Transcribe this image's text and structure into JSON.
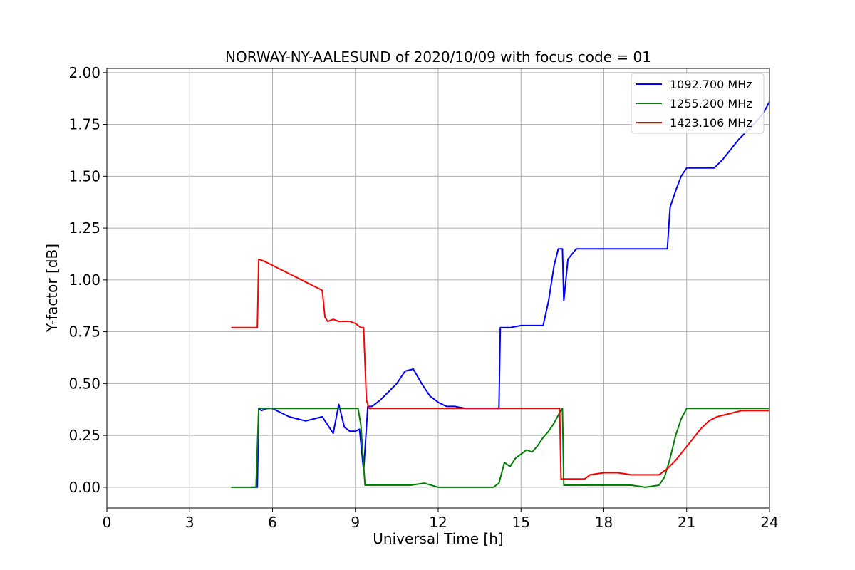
{
  "chart_data": {
    "type": "line",
    "title": "NORWAY-NY-AALESUND of 2020/10/09 with focus code = 01",
    "xlabel": "Universal Time [h]",
    "ylabel": "Y-factor [dB]",
    "xlim": [
      0,
      24
    ],
    "ylim": [
      -0.1,
      2.02
    ],
    "xticks": [
      0,
      3,
      6,
      9,
      12,
      15,
      18,
      21,
      24
    ],
    "yticks": [
      0.0,
      0.25,
      0.5,
      0.75,
      1.0,
      1.25,
      1.5,
      1.75,
      2.0
    ],
    "xtick_labels": [
      "0",
      "3",
      "6",
      "9",
      "12",
      "15",
      "18",
      "21",
      "24"
    ],
    "ytick_labels": [
      "0.00",
      "0.25",
      "0.50",
      "0.75",
      "1.00",
      "1.25",
      "1.50",
      "1.75",
      "2.00"
    ],
    "grid": true,
    "legend_position": "top-right",
    "series": [
      {
        "name": "1092.700 MHz",
        "color": "#0000ff",
        "x": [
          5.2,
          5.45,
          5.5,
          5.6,
          5.8,
          6.0,
          6.3,
          6.6,
          6.9,
          7.2,
          7.5,
          7.8,
          8.0,
          8.2,
          8.4,
          8.6,
          8.8,
          9.0,
          9.15,
          9.3,
          9.45,
          9.6,
          9.9,
          10.2,
          10.5,
          10.8,
          11.1,
          11.4,
          11.7,
          12.0,
          12.3,
          12.6,
          13.0,
          13.5,
          14.0,
          14.2,
          14.25,
          14.3,
          14.6,
          15.0,
          15.4,
          15.8,
          16.0,
          16.2,
          16.35,
          16.5,
          16.55,
          16.7,
          17.0,
          17.5,
          18.0,
          19.0,
          20.0,
          20.3,
          20.4,
          20.6,
          20.8,
          21.0,
          21.5,
          22.0,
          22.3,
          22.6,
          22.9,
          23.2,
          23.5,
          23.8,
          24.0
        ],
        "y": [
          0.0,
          0.0,
          0.38,
          0.37,
          0.38,
          0.38,
          0.36,
          0.34,
          0.33,
          0.32,
          0.33,
          0.34,
          0.3,
          0.26,
          0.4,
          0.29,
          0.27,
          0.27,
          0.28,
          0.08,
          0.39,
          0.39,
          0.42,
          0.46,
          0.5,
          0.56,
          0.57,
          0.5,
          0.44,
          0.41,
          0.39,
          0.39,
          0.38,
          0.38,
          0.38,
          0.38,
          0.77,
          0.77,
          0.77,
          0.78,
          0.78,
          0.78,
          0.9,
          1.07,
          1.15,
          1.15,
          0.9,
          1.1,
          1.15,
          1.15,
          1.15,
          1.15,
          1.15,
          1.15,
          1.35,
          1.43,
          1.5,
          1.54,
          1.54,
          1.54,
          1.58,
          1.63,
          1.68,
          1.72,
          1.76,
          1.81,
          1.86
        ]
      },
      {
        "name": "1255.200 MHz",
        "color": "#008000",
        "x": [
          4.5,
          5.4,
          5.5,
          6.0,
          7.0,
          8.0,
          8.8,
          9.1,
          9.2,
          9.35,
          9.6,
          10.0,
          10.5,
          11.0,
          11.5,
          12.0,
          12.5,
          13.0,
          13.5,
          14.0,
          14.2,
          14.4,
          14.6,
          14.8,
          15.0,
          15.2,
          15.4,
          15.6,
          15.8,
          16.0,
          16.2,
          16.4,
          16.5,
          16.55,
          17.0,
          17.5,
          18.0,
          18.5,
          19.0,
          19.5,
          20.0,
          20.2,
          20.4,
          20.6,
          20.8,
          21.0,
          21.5,
          22.0,
          23.0,
          24.0
        ],
        "y": [
          0.0,
          0.0,
          0.38,
          0.38,
          0.38,
          0.38,
          0.38,
          0.38,
          0.3,
          0.01,
          0.01,
          0.01,
          0.01,
          0.01,
          0.02,
          0.0,
          0.0,
          0.0,
          0.0,
          0.0,
          0.02,
          0.12,
          0.1,
          0.14,
          0.16,
          0.18,
          0.17,
          0.2,
          0.24,
          0.27,
          0.31,
          0.36,
          0.38,
          0.01,
          0.01,
          0.01,
          0.01,
          0.01,
          0.01,
          0.0,
          0.01,
          0.05,
          0.14,
          0.25,
          0.33,
          0.38,
          0.38,
          0.38,
          0.38,
          0.38
        ]
      },
      {
        "name": "1423.106 MHz",
        "color": "#ff0000",
        "x": [
          4.5,
          5.45,
          5.5,
          5.7,
          6.0,
          6.3,
          6.6,
          6.9,
          7.2,
          7.5,
          7.8,
          7.9,
          8.0,
          8.2,
          8.4,
          8.6,
          8.8,
          9.0,
          9.2,
          9.3,
          9.4,
          9.5,
          10.0,
          11.0,
          12.0,
          13.0,
          14.0,
          15.0,
          16.0,
          16.4,
          16.45,
          16.7,
          17.0,
          17.3,
          17.5,
          18.0,
          18.5,
          19.0,
          19.5,
          20.0,
          20.3,
          20.6,
          20.9,
          21.2,
          21.5,
          21.8,
          22.1,
          22.4,
          22.7,
          23.0,
          23.5,
          24.0
        ],
        "y": [
          0.77,
          0.77,
          1.1,
          1.09,
          1.07,
          1.05,
          1.03,
          1.01,
          0.99,
          0.97,
          0.95,
          0.82,
          0.8,
          0.81,
          0.8,
          0.8,
          0.8,
          0.79,
          0.77,
          0.77,
          0.42,
          0.38,
          0.38,
          0.38,
          0.38,
          0.38,
          0.38,
          0.38,
          0.38,
          0.38,
          0.04,
          0.04,
          0.04,
          0.04,
          0.06,
          0.07,
          0.07,
          0.06,
          0.06,
          0.06,
          0.09,
          0.13,
          0.18,
          0.23,
          0.28,
          0.32,
          0.34,
          0.35,
          0.36,
          0.37,
          0.37,
          0.37
        ]
      }
    ]
  }
}
